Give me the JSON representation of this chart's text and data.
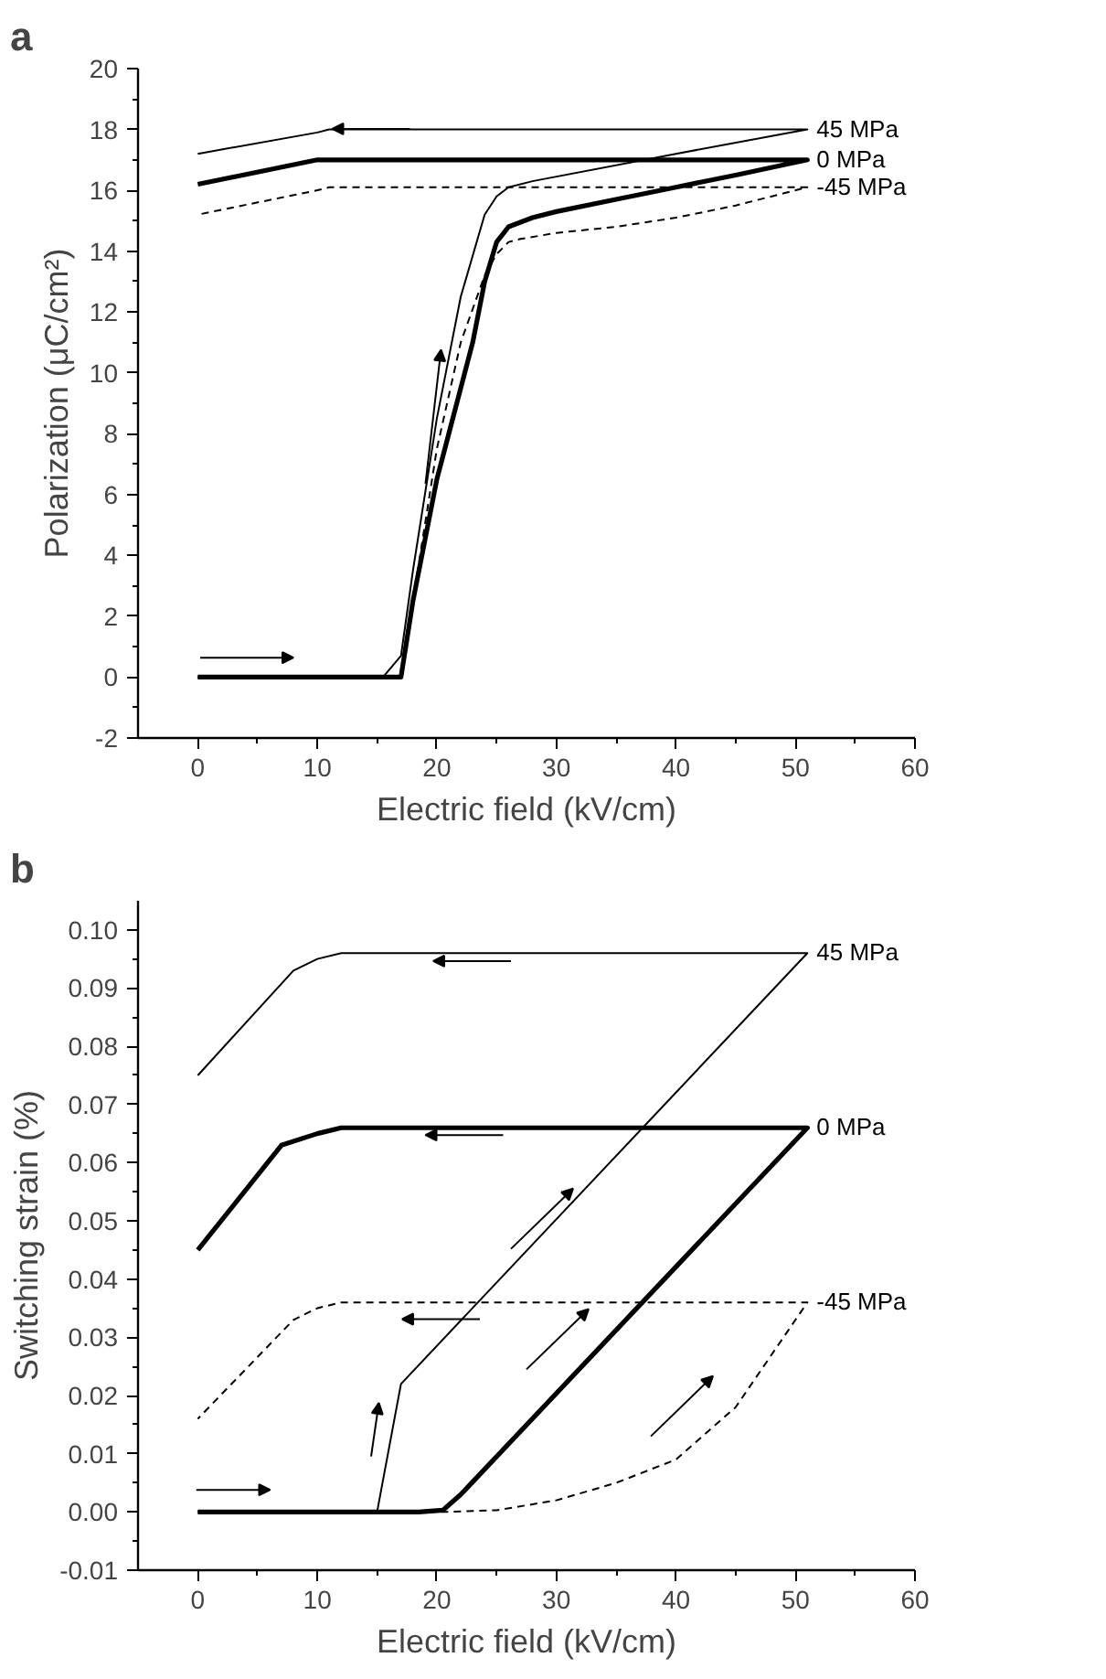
{
  "chart_data": [
    {
      "type": "line",
      "title": "a",
      "xlabel": "Electric field (kV/cm)",
      "ylabel": "Polarization (μC/cm²)",
      "xlim": [
        -5,
        60
      ],
      "ylim": [
        -2,
        20
      ],
      "xticks": [
        0,
        10,
        20,
        30,
        40,
        50,
        60
      ],
      "yticks": [
        -2,
        0,
        2,
        4,
        6,
        8,
        10,
        12,
        14,
        16,
        18,
        20
      ],
      "grid": false,
      "legend": false,
      "marker": "none",
      "series": [
        {
          "name": "45 MPa",
          "color": "#000000",
          "line_style": "solid",
          "x": [
            0,
            15.5,
            17,
            18,
            20,
            22,
            24,
            25,
            26,
            28,
            40,
            51,
            11,
            10,
            0
          ],
          "values": [
            0,
            0,
            0.7,
            3.5,
            8.5,
            12.5,
            15.2,
            15.8,
            16.1,
            16.3,
            17.2,
            18,
            18,
            17.9,
            17.2
          ]
        },
        {
          "name": "0 MPa",
          "color": "#000000",
          "line_style": "solid",
          "x": [
            0,
            17,
            18,
            19,
            20,
            21,
            22,
            23,
            24,
            25,
            26,
            28,
            30,
            35,
            40,
            45,
            51,
            11,
            10,
            0
          ],
          "values": [
            0,
            0,
            2.5,
            4.5,
            6.5,
            8,
            9.5,
            11,
            13,
            14.3,
            14.8,
            15.1,
            15.3,
            15.7,
            16.1,
            16.5,
            17,
            17,
            17,
            16.2
          ]
        },
        {
          "name": "-45 MPa",
          "color": "#000000",
          "line_style": "dashed",
          "x": [
            0,
            17,
            18,
            20,
            22,
            24,
            25,
            26,
            27,
            30,
            35,
            40,
            45,
            51,
            11,
            10,
            0
          ],
          "values": [
            0,
            0,
            2.5,
            7.5,
            11,
            13.2,
            13.9,
            14.3,
            14.4,
            14.6,
            14.8,
            15.1,
            15.5,
            16.1,
            16.1,
            16.0,
            15.2
          ]
        }
      ]
    },
    {
      "type": "line",
      "title": "b",
      "xlabel": "Electric field (kV/cm)",
      "ylabel": "Switching strain (%)",
      "xlim": [
        -5,
        60
      ],
      "ylim": [
        -0.01,
        0.105
      ],
      "xticks": [
        0,
        10,
        20,
        30,
        40,
        50,
        60
      ],
      "yticks": [
        {
          "value": -0.01,
          "label": "-0.01"
        },
        {
          "value": 0,
          "label": "0.00"
        },
        {
          "value": 0.01,
          "label": "0.01"
        },
        {
          "value": 0.02,
          "label": "0.02"
        },
        {
          "value": 0.03,
          "label": "0.03"
        },
        {
          "value": 0.04,
          "label": "0.04"
        },
        {
          "value": 0.05,
          "label": "0.05"
        },
        {
          "value": 0.06,
          "label": "0.06"
        },
        {
          "value": 0.07,
          "label": "0.07"
        },
        {
          "value": 0.08,
          "label": "0.08"
        },
        {
          "value": 0.09,
          "label": "0.09"
        },
        {
          "value": 0.1,
          "label": "0.10"
        }
      ],
      "grid": false,
      "legend": false,
      "marker": "none",
      "series": [
        {
          "name": "45 MPa",
          "color": "#000000",
          "line_style": "solid",
          "x": [
            0,
            15,
            17,
            51,
            12,
            10,
            8,
            0
          ],
          "values": [
            0,
            0,
            0.022,
            0.096,
            0.096,
            0.095,
            0.093,
            0.075
          ]
        },
        {
          "name": "0 MPa",
          "color": "#000000",
          "line_style": "solid",
          "x": [
            0,
            18.5,
            20.5,
            22,
            51,
            12,
            10,
            7,
            0
          ],
          "values": [
            0,
            0,
            0.0003,
            0.003,
            0.066,
            0.066,
            0.065,
            0.063,
            0.045
          ]
        },
        {
          "name": "-45 MPa",
          "color": "#000000",
          "line_style": "dashed",
          "x": [
            0,
            20.5,
            25,
            30,
            35,
            40,
            45,
            51,
            12,
            10,
            8,
            0
          ],
          "values": [
            0,
            0,
            0.0003,
            0.002,
            0.005,
            0.009,
            0.018,
            0.036,
            0.036,
            0.035,
            0.033,
            0.016
          ]
        }
      ]
    }
  ]
}
